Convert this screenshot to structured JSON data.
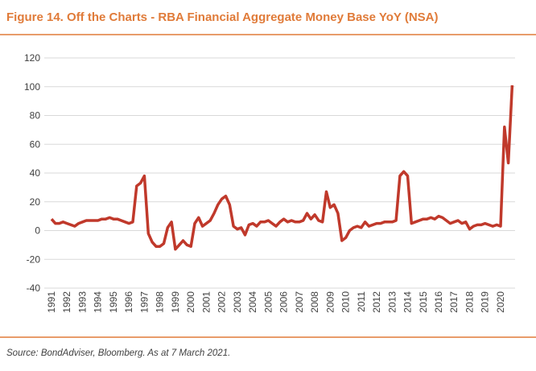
{
  "chart_data": {
    "type": "line",
    "title": "Figure 14. Off the Charts - RBA Financial Aggregate Money Base YoY (NSA)",
    "source": "Source: BondAdviser, Bloomberg. As at 7 March 2021.",
    "categories": [
      "1991",
      null,
      null,
      null,
      "1992",
      null,
      null,
      null,
      "1993",
      null,
      null,
      null,
      "1994",
      null,
      null,
      null,
      "1995",
      null,
      null,
      null,
      "1996",
      null,
      null,
      null,
      "1997",
      null,
      null,
      null,
      "1998",
      null,
      null,
      null,
      "1999",
      null,
      null,
      null,
      "2000",
      null,
      null,
      null,
      "2001",
      null,
      null,
      null,
      "2002",
      null,
      null,
      null,
      "2003",
      null,
      null,
      null,
      "2004",
      null,
      null,
      null,
      "2005",
      null,
      null,
      null,
      "2006",
      null,
      null,
      null,
      "2007",
      null,
      null,
      null,
      "2008",
      null,
      null,
      null,
      "2009",
      null,
      null,
      null,
      "2010",
      null,
      null,
      null,
      "2011",
      null,
      null,
      null,
      "2012",
      null,
      null,
      null,
      "2013",
      null,
      null,
      null,
      "2014",
      null,
      null,
      null,
      "2015",
      null,
      null,
      null,
      "2016",
      null,
      null,
      null,
      "2017",
      null,
      null,
      null,
      "2018",
      null,
      null,
      null,
      "2019",
      null,
      null,
      null,
      "2020",
      null,
      null,
      null
    ],
    "series": [
      {
        "name": "RBA Financial Aggregate Money Base YoY",
        "color": "#c0392b",
        "values": [
          8,
          5,
          5,
          6,
          5,
          4,
          3,
          5,
          6,
          7,
          7,
          7,
          7,
          8,
          8,
          9,
          8,
          8,
          7,
          6,
          5,
          6,
          31,
          33,
          38,
          -2,
          -8,
          -11,
          -11,
          -9,
          2,
          6,
          -13,
          -10,
          -7,
          -10,
          -11,
          5,
          9,
          3,
          5,
          7,
          12,
          18,
          22,
          24,
          18,
          3,
          1,
          2,
          -3,
          4,
          5,
          3,
          6,
          6,
          7,
          5,
          3,
          6,
          8,
          6,
          7,
          6,
          6,
          7,
          12,
          8,
          11,
          7,
          6,
          27,
          16,
          18,
          12,
          -7,
          -5,
          0,
          2,
          3,
          2,
          6,
          3,
          4,
          5,
          5,
          6,
          6,
          6,
          7,
          38,
          41,
          38,
          5,
          6,
          7,
          8,
          8,
          9,
          8,
          10,
          9,
          7,
          5,
          6,
          7,
          5,
          6,
          1,
          3,
          4,
          4,
          5,
          4,
          3,
          4,
          3,
          72,
          47,
          101
        ]
      }
    ],
    "ylim": [
      -40,
      120
    ],
    "yticks": [
      -40,
      -20,
      0,
      20,
      40,
      60,
      80,
      100,
      120
    ],
    "grid": true
  }
}
